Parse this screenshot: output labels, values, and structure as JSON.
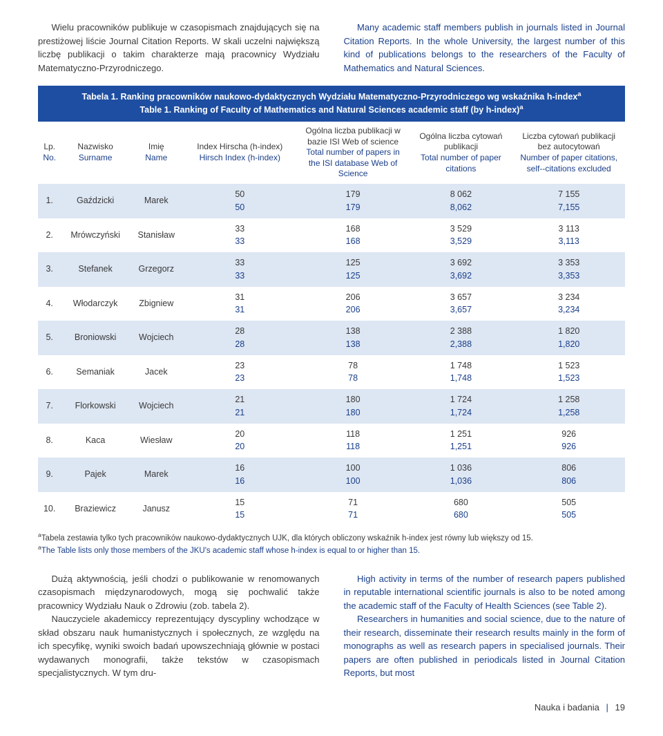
{
  "intro": {
    "pl": "Wielu pracowników publikuje w czasopismach znajdujących się na prestiżowej liście Journal Citation Reports. W skali uczelni największą liczbę publikacji o takim charakterze mają pracownicy Wydziału Matematyczno-Przyrodniczego.",
    "en": "Many academic staff members publish in journals listed in Journal Citation Reports. In the whole University, the largest number of this kind of publications belongs to the researchers of the Faculty of Mathematics and Natural Sciences."
  },
  "table1": {
    "caption_pl": "Tabela 1. Ranking pracowników naukowo-dydaktycznych Wydziału Matematyczno-Przyrodniczego wg wskaźnika h-index",
    "caption_en": "Table 1. Ranking of Faculty of Mathematics and Natural Sciences academic staff (by h-index)",
    "headers": {
      "lp_pl": "Lp.",
      "lp_en": "No.",
      "surname_pl": "Nazwisko",
      "surname_en": "Surname",
      "name_pl": "Imię",
      "name_en": "Name",
      "hindex_pl": "Index Hirscha (h-index)",
      "hindex_en": "Hirsch Index (h-index)",
      "papers_pl": "Ogólna liczba publikacji w bazie ISI Web of science",
      "papers_en": "Total number of papers in the ISI database Web of Science",
      "citations_pl": "Ogólna liczba cytowań publikacji",
      "citations_en": "Total number of paper citations",
      "selfcite_pl": "Liczba cytowań publikacji bez autocytowań",
      "selfcite_en": "Number of paper citations, self-­-citations excluded"
    },
    "rows": [
      {
        "no": "1.",
        "surname": "Gaździcki",
        "name": "Marek",
        "h_pl": "50",
        "h_en": "50",
        "p_pl": "179",
        "p_en": "179",
        "c_pl": "8 062",
        "c_en": "8,062",
        "s_pl": "7 155",
        "s_en": "7,155"
      },
      {
        "no": "2.",
        "surname": "Mrówczyński",
        "name": "Stanisław",
        "h_pl": "33",
        "h_en": "33",
        "p_pl": "168",
        "p_en": "168",
        "c_pl": "3 529",
        "c_en": "3,529",
        "s_pl": "3 113",
        "s_en": "3,113"
      },
      {
        "no": "3.",
        "surname": "Stefanek",
        "name": "Grzegorz",
        "h_pl": "33",
        "h_en": "33",
        "p_pl": "125",
        "p_en": "125",
        "c_pl": "3 692",
        "c_en": "3,692",
        "s_pl": "3 353",
        "s_en": "3,353"
      },
      {
        "no": "4.",
        "surname": "Włodarczyk",
        "name": "Zbigniew",
        "h_pl": "31",
        "h_en": "31",
        "p_pl": "206",
        "p_en": "206",
        "c_pl": "3 657",
        "c_en": "3,657",
        "s_pl": "3 234",
        "s_en": "3,234"
      },
      {
        "no": "5.",
        "surname": "Broniowski",
        "name": "Wojciech",
        "h_pl": "28",
        "h_en": "28",
        "p_pl": "138",
        "p_en": "138",
        "c_pl": "2 388",
        "c_en": "2,388",
        "s_pl": "1 820",
        "s_en": "1,820"
      },
      {
        "no": "6.",
        "surname": "Semaniak",
        "name": "Jacek",
        "h_pl": "23",
        "h_en": "23",
        "p_pl": "78",
        "p_en": "78",
        "c_pl": "1 748",
        "c_en": "1,748",
        "s_pl": "1 523",
        "s_en": "1,523"
      },
      {
        "no": "7.",
        "surname": "Florkowski",
        "name": "Wojciech",
        "h_pl": "21",
        "h_en": "21",
        "p_pl": "180",
        "p_en": "180",
        "c_pl": "1 724",
        "c_en": "1,724",
        "s_pl": "1 258",
        "s_en": "1,258"
      },
      {
        "no": "8.",
        "surname": "Kaca",
        "name": "Wiesław",
        "h_pl": "20",
        "h_en": "20",
        "p_pl": "118",
        "p_en": "118",
        "c_pl": "1 251",
        "c_en": "1,251",
        "s_pl": "926",
        "s_en": "926"
      },
      {
        "no": "9.",
        "surname": "Pajek",
        "name": "Marek",
        "h_pl": "16",
        "h_en": "16",
        "p_pl": "100",
        "p_en": "100",
        "c_pl": "1 036",
        "c_en": "1,036",
        "s_pl": "806",
        "s_en": "806"
      },
      {
        "no": "10.",
        "surname": "Braziewicz",
        "name": "Janusz",
        "h_pl": "15",
        "h_en": "15",
        "p_pl": "71",
        "p_en": "71",
        "c_pl": "680",
        "c_en": "680",
        "s_pl": "505",
        "s_en": "505"
      }
    ],
    "footnote_pl": "Tabela zestawia tylko tych pracowników naukowo-dydaktycznych UJK, dla których obliczony wskaźnik h-index jest równy lub większy od 15.",
    "footnote_en": "The Table lists only those members of the JKU's academic staff whose h-index is equal to or higher than 15."
  },
  "para2": {
    "pl_1": "Dużą aktywnością, jeśli chodzi o publikowanie w renomowanych czasopismach międzynarodowych, mogą się pochwalić także pracownicy Wydziału Nauk o Zdrowiu (zob. tabela 2).",
    "pl_2": "Nauczyciele akademiccy reprezentujący dyscypliny wchodzące w skład obszaru nauk humanistycznych i społecznych, ze względu na ich specyfikę, wyniki swoich badań upowszechniają głównie w postaci wydawanych monografii, także tekstów w czasopismach specjalistycznych. W tym dru-",
    "en_1": "High activity in terms of the number of research papers published in reputable international scientific journals is also to be noted among the academic staff of the Faculty of Health Sciences (see Table 2).",
    "en_2": "Researchers in humanities and social science, due to the nature of their research, disseminate their research results mainly in the form of monographs as well as research papers in specialised journals. Their papers are often published in periodicals listed in Journal Citation Reports, but most"
  },
  "footer": {
    "section": "Nauka i badania",
    "page": "19"
  }
}
